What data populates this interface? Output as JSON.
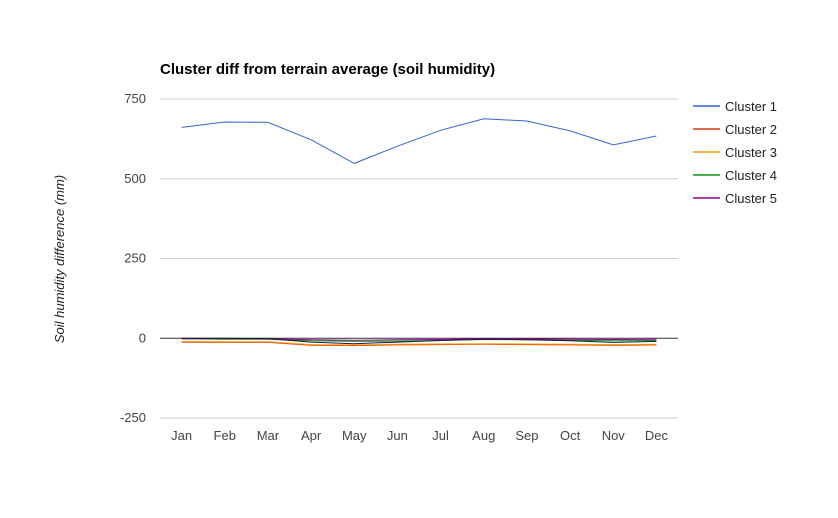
{
  "chart_data": {
    "type": "line",
    "title": "Cluster diff from terrain average (soil humidity)",
    "xlabel": "",
    "ylabel": "Soil humidity difference (mm)",
    "categories": [
      "Jan",
      "Feb",
      "Mar",
      "Apr",
      "May",
      "Jun",
      "Jul",
      "Aug",
      "Sep",
      "Oct",
      "Nov",
      "Dec"
    ],
    "ylim": [
      -250,
      750
    ],
    "yticks": [
      "750",
      "500",
      "250",
      "0",
      "-250"
    ],
    "ytick_values": [
      750,
      500,
      250,
      0,
      -250
    ],
    "grid": true,
    "legend_position": "right",
    "series": [
      {
        "name": "Cluster 1",
        "color": "#3366cc",
        "values": [
          661,
          678,
          677,
          622,
          548,
          602,
          652,
          688,
          681,
          650,
          606,
          634
        ]
      },
      {
        "name": "Cluster 2",
        "color": "#dc3912",
        "values": [
          -12,
          -13,
          -13,
          -22,
          -23,
          -21,
          -20,
          -19,
          -20,
          -21,
          -22,
          -21
        ]
      },
      {
        "name": "Cluster 3",
        "color": "#ff9900",
        "values": [
          -10,
          -11,
          -11,
          -20,
          -21,
          -19,
          -18,
          -17,
          -18,
          -19,
          -20,
          -19
        ]
      },
      {
        "name": "Cluster 4",
        "color": "#109618",
        "values": [
          -2,
          -3,
          -3,
          -8,
          -10,
          -9,
          -7,
          -4,
          -5,
          -6,
          -8,
          -7
        ]
      },
      {
        "name": "Cluster 5",
        "color": "#990099",
        "values": [
          -1,
          -1,
          -2,
          -5,
          -6,
          -5,
          -4,
          -1,
          -2,
          -3,
          -4,
          -3
        ]
      },
      {
        "name": "",
        "color": "#1a1a3a",
        "values": [
          0,
          0,
          -1,
          -12,
          -17,
          -12,
          -7,
          -3,
          -5,
          -8,
          -13,
          -10
        ]
      }
    ]
  }
}
